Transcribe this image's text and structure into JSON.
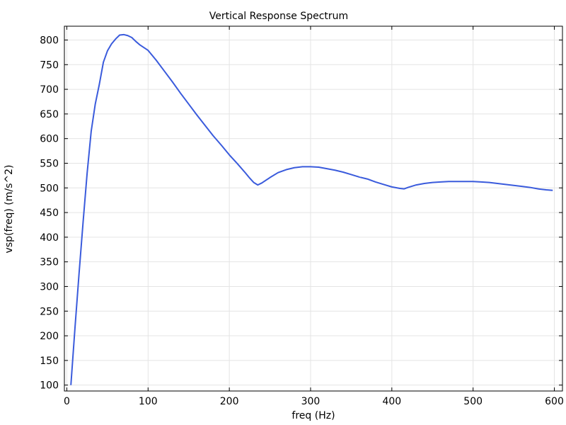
{
  "chart_data": {
    "type": "line",
    "title": "Vertical Response Spectrum",
    "xlabel": "freq (Hz)",
    "ylabel": "vsp(freq) (m/s^2)",
    "xlim": [
      -3,
      610
    ],
    "ylim": [
      88,
      828
    ],
    "xticks": [
      0,
      100,
      200,
      300,
      400,
      500,
      600
    ],
    "yticks": [
      100,
      150,
      200,
      250,
      300,
      350,
      400,
      450,
      500,
      550,
      600,
      650,
      700,
      750,
      800
    ],
    "grid": true,
    "line_color": "#3a5bdc",
    "series": [
      {
        "x": [
          5,
          10,
          15,
          20,
          25,
          30,
          35,
          40,
          45,
          50,
          55,
          60,
          65,
          70,
          75,
          80,
          85,
          90,
          100,
          110,
          120,
          130,
          140,
          150,
          160,
          170,
          180,
          190,
          200,
          210,
          220,
          225,
          230,
          235,
          240,
          250,
          260,
          270,
          280,
          290,
          300,
          310,
          320,
          330,
          340,
          350,
          360,
          370,
          380,
          390,
          400,
          410,
          415,
          420,
          430,
          440,
          450,
          460,
          470,
          480,
          490,
          500,
          510,
          520,
          530,
          540,
          550,
          560,
          570,
          580,
          590,
          598
        ],
        "y": [
          100,
          215,
          325,
          430,
          530,
          615,
          670,
          710,
          755,
          778,
          792,
          802,
          810,
          811,
          809,
          805,
          797,
          790,
          779,
          759,
          737,
          715,
          692,
          670,
          648,
          627,
          606,
          587,
          567,
          549,
          530,
          520,
          511,
          506,
          510,
          521,
          531,
          537,
          541,
          543,
          543,
          542,
          539,
          536,
          532,
          527,
          522,
          518,
          512,
          507,
          502,
          499,
          498,
          501,
          506,
          509,
          511,
          512,
          513,
          513,
          513,
          513,
          512,
          511,
          509,
          507,
          505,
          503,
          501,
          498,
          496,
          495
        ]
      }
    ]
  }
}
